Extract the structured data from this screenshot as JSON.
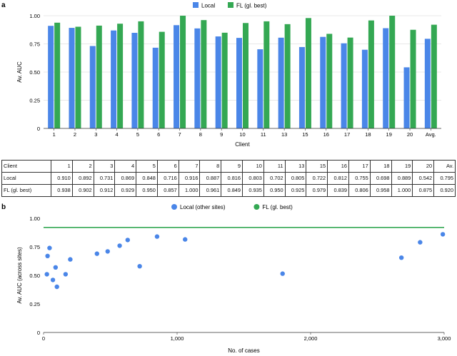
{
  "panel_a_label": "a",
  "panel_b_label": "b",
  "chart_data": [
    {
      "type": "bar",
      "title": "",
      "xlabel": "Client",
      "ylabel": "Av. AUC",
      "ylim": [
        0,
        1
      ],
      "yticks": [
        "0",
        "0.25",
        "0.50",
        "0.75",
        "1.00"
      ],
      "legend_position": "top-center",
      "categories": [
        "1",
        "2",
        "3",
        "4",
        "5",
        "6",
        "7",
        "8",
        "9",
        "10",
        "11",
        "13",
        "15",
        "16",
        "17",
        "18",
        "19",
        "20",
        "Avg."
      ],
      "series": [
        {
          "name": "Local",
          "color": "#4a86e8",
          "values": [
            0.91,
            0.892,
            0.731,
            0.869,
            0.848,
            0.716,
            0.916,
            0.887,
            0.816,
            0.803,
            0.702,
            0.805,
            0.722,
            0.812,
            0.755,
            0.698,
            0.889,
            0.542,
            0.795
          ]
        },
        {
          "name": "FL (gl. best)",
          "color": "#34a853",
          "values": [
            0.938,
            0.902,
            0.912,
            0.929,
            0.95,
            0.857,
            1.0,
            0.961,
            0.849,
            0.935,
            0.95,
            0.925,
            0.979,
            0.839,
            0.806,
            0.958,
            1.0,
            0.875,
            0.92
          ]
        }
      ]
    },
    {
      "type": "scatter",
      "title": "",
      "xlabel": "No. of cases",
      "ylabel": "Av. AUC (across sites)",
      "xlim": [
        0,
        3000
      ],
      "ylim": [
        0,
        1
      ],
      "xticks": [
        "0",
        "1,000",
        "2,000",
        "3,000"
      ],
      "yticks": [
        "0",
        "0.25",
        "0.50",
        "0.75",
        "1.00"
      ],
      "legend_position": "top-center",
      "series": [
        {
          "name": "Local (other sites)",
          "color": "#4a86e8",
          "kind": "points",
          "points": [
            [
              25,
              0.51
            ],
            [
              30,
              0.67
            ],
            [
              45,
              0.74
            ],
            [
              70,
              0.46
            ],
            [
              90,
              0.57
            ],
            [
              100,
              0.4
            ],
            [
              165,
              0.51
            ],
            [
              200,
              0.64
            ],
            [
              400,
              0.69
            ],
            [
              480,
              0.71
            ],
            [
              570,
              0.76
            ],
            [
              630,
              0.81
            ],
            [
              720,
              0.58
            ],
            [
              850,
              0.84
            ],
            [
              1060,
              0.815
            ],
            [
              1790,
              0.515
            ],
            [
              2680,
              0.655
            ],
            [
              2820,
              0.79
            ],
            [
              2990,
              0.86
            ]
          ]
        },
        {
          "name": "FL (gl. best)",
          "color": "#34a853",
          "kind": "hline",
          "y": 0.92
        }
      ]
    }
  ],
  "table": {
    "header": [
      "Client",
      "1",
      "2",
      "3",
      "4",
      "5",
      "6",
      "7",
      "8",
      "9",
      "10",
      "11",
      "13",
      "15",
      "16",
      "17",
      "18",
      "19",
      "20",
      "Av."
    ],
    "rows": [
      [
        "Local",
        "0.910",
        "0.892",
        "0.731",
        "0.869",
        "0.848",
        "0.716",
        "0.916",
        "0.887",
        "0.816",
        "0.803",
        "0.702",
        "0.805",
        "0.722",
        "0.812",
        "0.755",
        "0.698",
        "0.889",
        "0.542",
        "0.795"
      ],
      [
        "FL (gl. best)",
        "0.938",
        "0.902",
        "0.912",
        "0.929",
        "0.950",
        "0.857",
        "1.000",
        "0.961",
        "0.849",
        "0.935",
        "0.950",
        "0.925",
        "0.979",
        "0.839",
        "0.806",
        "0.958",
        "1.000",
        "0.875",
        "0.920"
      ]
    ]
  }
}
